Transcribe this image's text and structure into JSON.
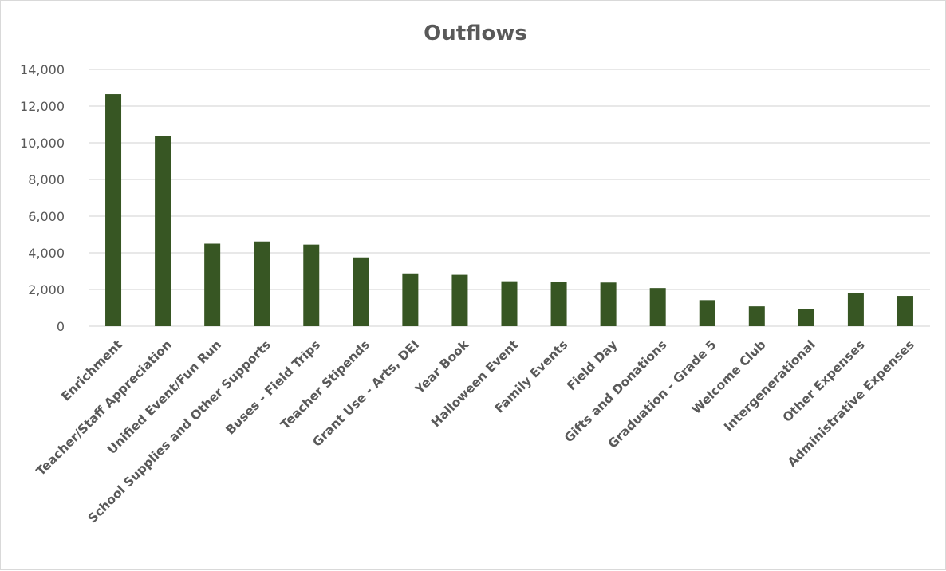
{
  "chart_data": {
    "type": "bar",
    "title": "Outflows",
    "xlabel": "",
    "ylabel": "",
    "categories": [
      "Enrichment",
      "Teacher/Staff Appreciation",
      "Unified Event/Fun Run",
      "School Supplies and Other Supports",
      "Buses - Field Trips",
      "Teacher Stipends",
      "Grant Use - Arts, DEI",
      "Year Book",
      "Halloween Event",
      "Family Events",
      "Field Day",
      "Gifts and Donations",
      "Graduation - Grade 5",
      "Welcome Club",
      "Intergenerational",
      "Other Expenses",
      "Administrative Expenses"
    ],
    "values": [
      12650,
      10350,
      4500,
      4620,
      4450,
      3750,
      2880,
      2800,
      2450,
      2420,
      2380,
      2080,
      1420,
      1080,
      950,
      1790,
      1650
    ],
    "ylim": [
      0,
      14000
    ],
    "yticks": [
      0,
      2000,
      4000,
      6000,
      8000,
      10000,
      12000,
      14000
    ],
    "ytick_labels": [
      "0",
      "2,000",
      "4,000",
      "6,000",
      "8,000",
      "10,000",
      "12,000",
      "14,000"
    ],
    "grid": true,
    "legend": "none",
    "bar_color": "#375623"
  }
}
